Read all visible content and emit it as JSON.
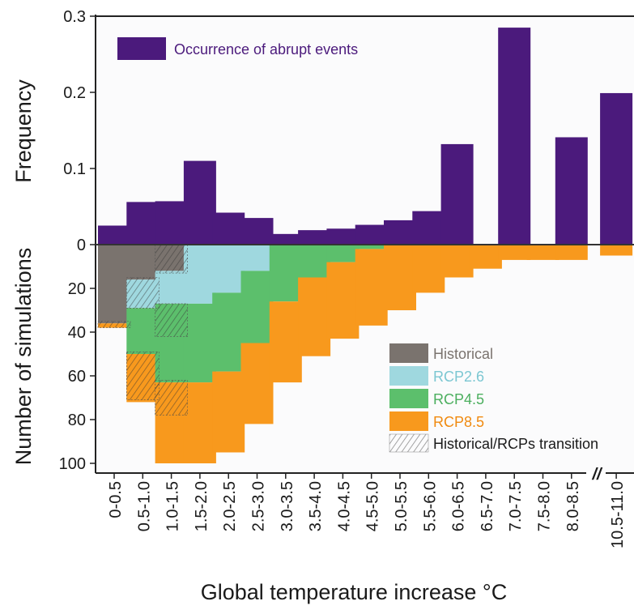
{
  "chart_data": {
    "type": "bar",
    "categories": [
      "0-0.5",
      "0.5-1.0",
      "1.0-1.5",
      "1.5-2.0",
      "2.0-2.5",
      "2.5-3.0",
      "3.0-3.5",
      "3.5-4.0",
      "4.0-4.5",
      "4.5-5.0",
      "5.0-5.5",
      "5.5-6.0",
      "6.0-6.5",
      "6.5-7.0",
      "7.0-7.5",
      "7.5-8.0",
      "8.0-8.5",
      "10.5-11.0"
    ],
    "xlabel": "Global temperature increase °C",
    "axis_break_label": "//",
    "top_panel": {
      "ylabel": "Frequency",
      "ylim": [
        0,
        0.3
      ],
      "yticks": [
        "0",
        "0.1",
        "0.2",
        "0.3"
      ],
      "series": [
        {
          "name": "Occurrence of abrupt events",
          "color": "#4b1a7c",
          "values": [
            0.025,
            0.056,
            0.057,
            0.11,
            0.042,
            0.035,
            0.014,
            0.019,
            0.021,
            0.026,
            0.032,
            0.044,
            0.132,
            null,
            0.285,
            null,
            0.141,
            0.199
          ]
        }
      ]
    },
    "bottom_panel": {
      "ylabel": "Number of simulations",
      "ylim": [
        0,
        100
      ],
      "yticks": [
        "0",
        "20",
        "40",
        "60",
        "80",
        "100"
      ],
      "stacked": true,
      "series": [
        {
          "name": "Historical",
          "color": "#7a736e",
          "values": [
            36,
            16,
            12,
            0,
            0,
            0,
            0,
            0,
            0,
            0,
            0,
            0,
            0,
            0,
            0,
            0,
            0,
            0
          ]
        },
        {
          "name": "RCP2.6",
          "color": "#9fd8df",
          "values": [
            0,
            13,
            15,
            27,
            22,
            12,
            0,
            0,
            0,
            0,
            0,
            0,
            0,
            0,
            0,
            0,
            0,
            0
          ]
        },
        {
          "name": "RCP4.5",
          "color": "#5cbf6c",
          "values": [
            0,
            21,
            36,
            36,
            36,
            33,
            26,
            15,
            8,
            2,
            0,
            0,
            0,
            0,
            0,
            0,
            0,
            0
          ]
        },
        {
          "name": "RCP8.5",
          "color": "#f8991d",
          "values": [
            2,
            22,
            37,
            37,
            37,
            37,
            37,
            36,
            35,
            35,
            30,
            22,
            15,
            11,
            7,
            7,
            7,
            5
          ]
        }
      ],
      "transition_label": "Historical/RCPs transition",
      "transition_bands": [
        [
          0,
          35,
          38
        ],
        [
          1,
          15,
          29
        ],
        [
          1,
          49,
          71
        ],
        [
          2,
          0,
          13
        ],
        [
          2,
          27,
          42
        ],
        [
          2,
          62,
          78
        ]
      ]
    },
    "legend_placement": [
      "top-left",
      "lower-right"
    ]
  }
}
